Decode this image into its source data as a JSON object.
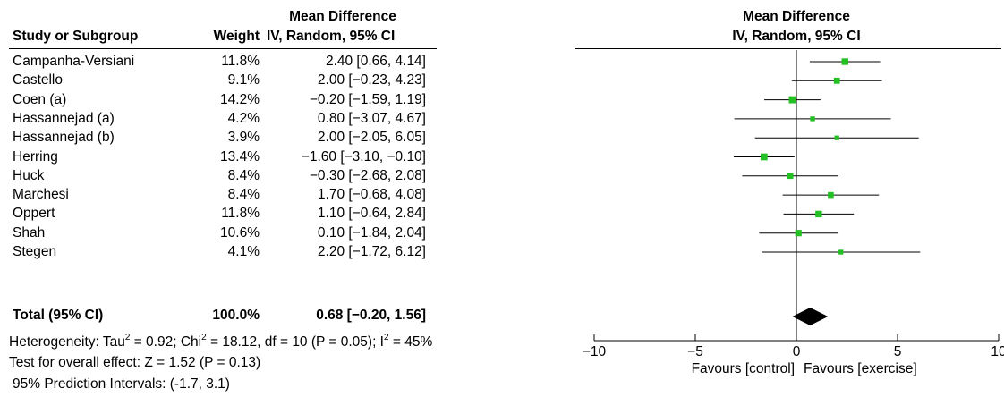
{
  "table": {
    "header": {
      "col_study": "Study or Subgroup",
      "col_weight": "Weight",
      "col_md_top": "Mean Difference",
      "col_md_bottom": "IV, Random, 95% CI",
      "plot_top": "Mean Difference",
      "plot_bottom": "IV, Random, 95% CI"
    },
    "rows": [
      {
        "study": "Campanha-Versiani",
        "weight": "11.8%",
        "ci_text": "2.40 [0.66, 4.14]"
      },
      {
        "study": "Castello",
        "weight": "9.1%",
        "ci_text": "2.00 [−0.23, 4.23]"
      },
      {
        "study": "Coen (a)",
        "weight": "14.2%",
        "ci_text": "−0.20 [−1.59, 1.19]"
      },
      {
        "study": "Hassannejad (a)",
        "weight": "4.2%",
        "ci_text": "0.80 [−3.07, 4.67]"
      },
      {
        "study": "Hassannejad (b)",
        "weight": "3.9%",
        "ci_text": "2.00 [−2.05, 6.05]"
      },
      {
        "study": "Herring",
        "weight": "13.4%",
        "ci_text": "−1.60 [−3.10, −0.10]"
      },
      {
        "study": "Huck",
        "weight": "8.4%",
        "ci_text": "−0.30 [−2.68, 2.08]"
      },
      {
        "study": "Marchesi",
        "weight": "8.4%",
        "ci_text": "1.70 [−0.68, 4.08]"
      },
      {
        "study": "Oppert",
        "weight": "11.8%",
        "ci_text": "1.10 [−0.64, 2.84]"
      },
      {
        "study": "Shah",
        "weight": "10.6%",
        "ci_text": "0.10 [−1.84, 2.04]"
      },
      {
        "study": "Stegen",
        "weight": "4.1%",
        "ci_text": "2.20 [−1.72, 6.12]"
      }
    ],
    "total": {
      "study": "Total (95% CI)",
      "weight": "100.0%",
      "ci_text": "0.68 [−0.20, 1.56]"
    }
  },
  "footnotes": {
    "heterogeneity": {
      "p1": "Heterogeneity: Tau",
      "sup1": "2",
      "p2": " = 0.92; Chi",
      "sup2": "2",
      "p3": " = 18.12, df = 10 (P = 0.05); I",
      "sup3": "2",
      "p4": " = 45%"
    },
    "overall_effect": "Test for overall effect: Z = 1.52 (P = 0.13)",
    "prediction": "95% Prediction Intervals: (-1.7, 3.1)"
  },
  "chart_data": {
    "type": "forest",
    "x_ticks": [
      -10,
      -5,
      0,
      5,
      10
    ],
    "x_tick_labels": [
      "−10",
      "−5",
      "0",
      "5",
      "10"
    ],
    "xlim": [
      -10,
      10
    ],
    "favours_left": "Favours [control]",
    "favours_right": "Favours [exercise]",
    "colors": {
      "marker": "#22c022",
      "line": "#000000",
      "diamond": "#000000"
    },
    "studies": [
      {
        "name": "Campanha-Versiani",
        "weight": 11.8,
        "mean": 2.4,
        "lower": 0.66,
        "upper": 4.14
      },
      {
        "name": "Castello",
        "weight": 9.1,
        "mean": 2.0,
        "lower": -0.23,
        "upper": 4.23
      },
      {
        "name": "Coen (a)",
        "weight": 14.2,
        "mean": -0.2,
        "lower": -1.59,
        "upper": 1.19
      },
      {
        "name": "Hassannejad (a)",
        "weight": 4.2,
        "mean": 0.8,
        "lower": -3.07,
        "upper": 4.67
      },
      {
        "name": "Hassannejad (b)",
        "weight": 3.9,
        "mean": 2.0,
        "lower": -2.05,
        "upper": 6.05
      },
      {
        "name": "Herring",
        "weight": 13.4,
        "mean": -1.6,
        "lower": -3.1,
        "upper": -0.1
      },
      {
        "name": "Huck",
        "weight": 8.4,
        "mean": -0.3,
        "lower": -2.68,
        "upper": 2.08
      },
      {
        "name": "Marchesi",
        "weight": 8.4,
        "mean": 1.7,
        "lower": -0.68,
        "upper": 4.08
      },
      {
        "name": "Oppert",
        "weight": 11.8,
        "mean": 1.1,
        "lower": -0.64,
        "upper": 2.84
      },
      {
        "name": "Shah",
        "weight": 10.6,
        "mean": 0.1,
        "lower": -1.84,
        "upper": 2.04
      },
      {
        "name": "Stegen",
        "weight": 4.1,
        "mean": 2.2,
        "lower": -1.72,
        "upper": 6.12
      }
    ],
    "pooled": {
      "mean": 0.68,
      "lower": -0.2,
      "upper": 1.56
    }
  }
}
